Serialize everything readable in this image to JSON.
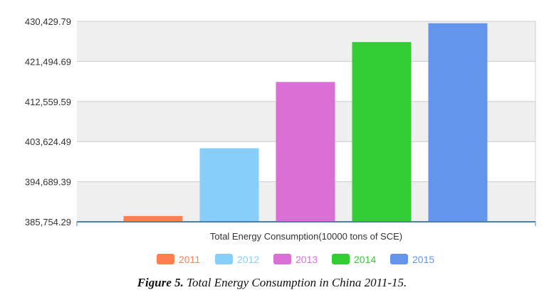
{
  "chart_data": {
    "type": "bar",
    "title": "",
    "xlabel": "Total Energy Consumption(10000 tons of SCE)",
    "ylabel": "",
    "ylim": [
      385754.29,
      430429.79
    ],
    "yticks": [
      "385,754.29",
      "394,689.39",
      "403,624.49",
      "412,559.59",
      "421,494.69",
      "430,429.79"
    ],
    "grid": true,
    "legend_position": "bottom",
    "series": [
      {
        "name": "2011",
        "value": 387043,
        "color": "#ff7f50"
      },
      {
        "name": "2012",
        "value": 402138,
        "color": "#87cefa"
      },
      {
        "name": "2013",
        "value": 416913,
        "color": "#da70d6"
      },
      {
        "name": "2014",
        "value": 425806,
        "color": "#32cd32"
      },
      {
        "name": "2015",
        "value": 430000,
        "color": "#6495ed"
      }
    ]
  },
  "caption": {
    "label": "Figure 5.",
    "text": " Total Energy Consumption in China 2011-15."
  }
}
